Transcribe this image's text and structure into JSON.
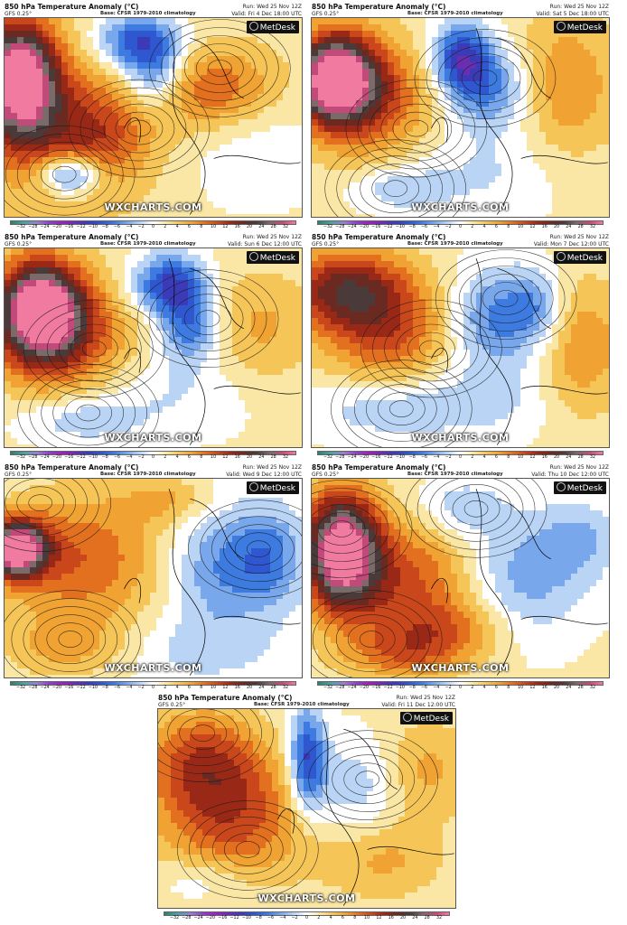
{
  "panels": [
    {
      "title": "850 hPa Temperature Anomaly (°C)",
      "model": "GFS 0.25°",
      "base": "Base: CFSR 1979-2010 climatology",
      "run": "Run: Wed 25 Nov 12Z",
      "valid": "Valid: Fri 4 Dec 18:00 UTC",
      "brand": "MetDesk",
      "watermark": "WXCHARTS.COM"
    },
    {
      "title": "850 hPa Temperature Anomaly (°C)",
      "model": "GFS 0.25°",
      "base": "Base: CFSR 1979-2010 climatology",
      "run": "Run: Wed 25 Nov 12Z",
      "valid": "Valid: Sat 5 Dec 18:00 UTC",
      "brand": "MetDesk",
      "watermark": "WXCHARTS.COM"
    },
    {
      "title": "850 hPa Temperature Anomaly (°C)",
      "model": "GFS 0.25°",
      "base": "Base: CFSR 1979-2010 climatology",
      "run": "Run: Wed 25 Nov 12Z",
      "valid": "Valid: Sun 6 Dec 12:00 UTC",
      "brand": "MetDesk",
      "watermark": "WXCHARTS.COM"
    },
    {
      "title": "850 hPa Temperature Anomaly (°C)",
      "model": "GFS 0.25°",
      "base": "Base: CFSR 1979-2010 climatology",
      "run": "Run: Wed 25 Nov 12Z",
      "valid": "Valid: Mon 7 Dec 12:00 UTC",
      "brand": "MetDesk",
      "watermark": "WXCHARTS.COM"
    },
    {
      "title": "850 hPa Temperature Anomaly (°C)",
      "model": "GFS 0.25°",
      "base": "Base: CFSR 1979-2010 climatology",
      "run": "Run: Wed 25 Nov 12Z",
      "valid": "Valid: Wed 9 Dec 12:00 UTC",
      "brand": "MetDesk",
      "watermark": "WXCHARTS.COM"
    },
    {
      "title": "850 hPa Temperature Anomaly (°C)",
      "model": "GFS 0.25°",
      "base": "Base: CFSR 1979-2010 climatology",
      "run": "Run: Wed 25 Nov 12Z",
      "valid": "Valid: Thu 10 Dec 12:00 UTC",
      "brand": "MetDesk",
      "watermark": "WXCHARTS.COM"
    },
    {
      "title": "850 hPa Temperature Anomaly (°C)",
      "model": "GFS 0.25°",
      "base": "Base: CFSR 1979-2010 climatology",
      "run": "Run: Wed 25 Nov 12Z",
      "valid": "Valid: Fri 11 Dec 12:00 UTC",
      "brand": "MetDesk",
      "watermark": "WXCHARTS.COM"
    }
  ],
  "colorbar": {
    "ticks": [
      "−32",
      "−28",
      "−24",
      "−20",
      "−16",
      "−12",
      "−10",
      "−8",
      "−6",
      "−4",
      "−2",
      "0",
      "2",
      "4",
      "6",
      "8",
      "10",
      "12",
      "16",
      "20",
      "24",
      "28",
      "32"
    ],
    "colors": [
      "#2f7f6e",
      "#4aa3a0",
      "#9a7fd0",
      "#8d3fc9",
      "#a21fb8",
      "#6a2fb0",
      "#3b3bb8",
      "#2f57cf",
      "#3d7be0",
      "#79a7ec",
      "#b9d4f4",
      "#ffffff",
      "#fbe7a5",
      "#f6c558",
      "#f0a232",
      "#e3701f",
      "#c9471a",
      "#9a2817",
      "#6a2a22",
      "#4a3a3a",
      "#7a6a6a",
      "#c24a7a",
      "#f07aa0"
    ],
    "min": -32,
    "max": 32
  },
  "map_colors": {
    "cold_deep": "#5a1ea8",
    "cold": "#2f5fd0",
    "cool": "#8db6ee",
    "neutral": "#eef2f6",
    "warm": "#f0b448",
    "hot": "#d6601e",
    "very_hot": "#9c2a18",
    "extreme": "#3a3434",
    "isobar": "#1a1a1a",
    "coast": "#000000"
  }
}
